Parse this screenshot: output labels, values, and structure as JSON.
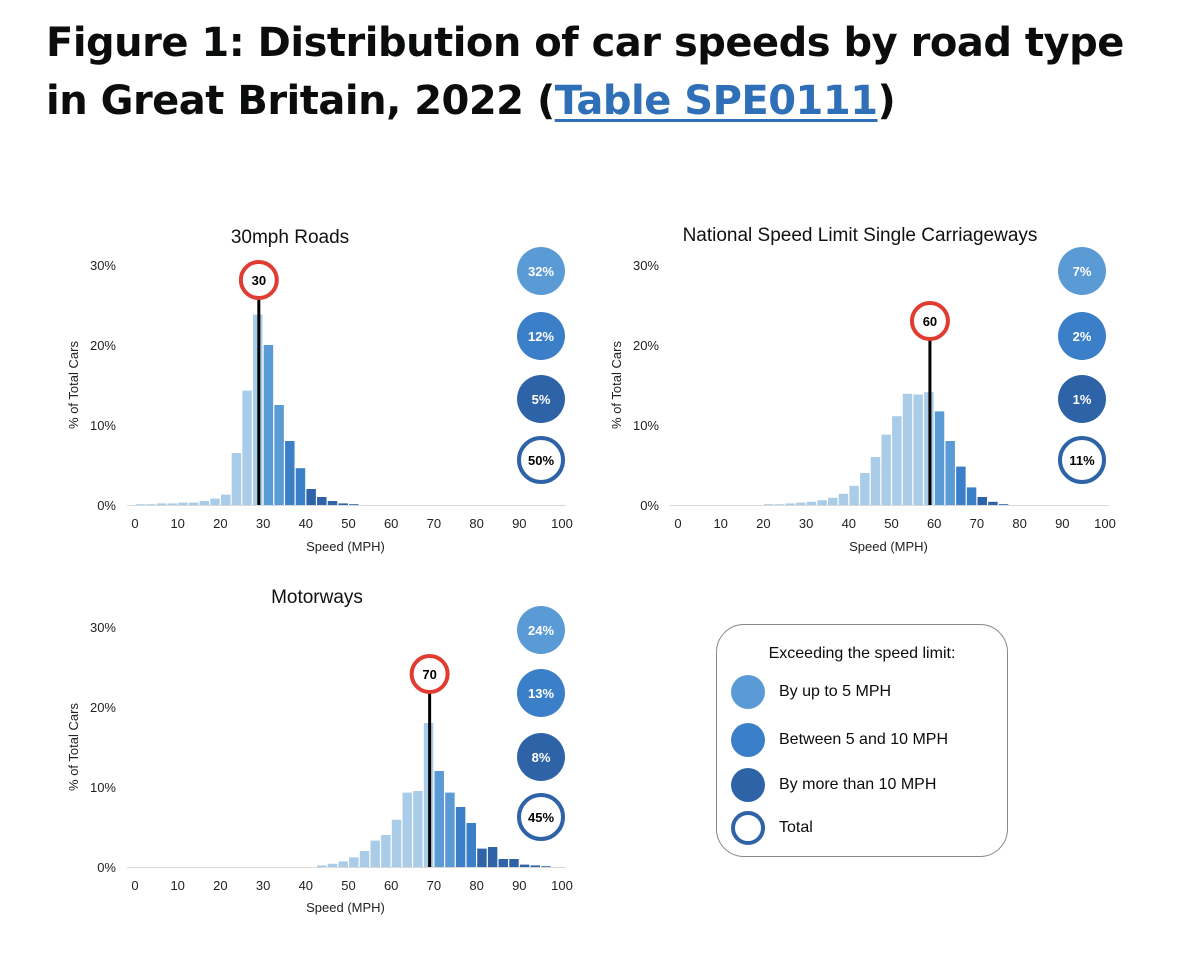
{
  "figure_title": {
    "prefix": "Figure 1: Distribution of car speeds by road type in Great Britain, 2022 (",
    "link_text": "Table SPE0111",
    "suffix": ")"
  },
  "colors": {
    "up_to_5": "#5b9bd5",
    "between_5_10": "#3a7fc8",
    "over_10": "#2e63a8",
    "total_ring": "#2e63a8",
    "under_limit_bar": "#a9cde8",
    "limit_ring": "#e03c31"
  },
  "legend": {
    "title": "Exceeding the speed limit:",
    "items": [
      {
        "label": "By up to 5 MPH",
        "color": "#5b9bd5",
        "style": "fill"
      },
      {
        "label": "Between 5 and 10 MPH",
        "color": "#3a7fc8",
        "style": "fill"
      },
      {
        "label": "By more than 10 MPH",
        "color": "#2e63a8",
        "style": "fill"
      },
      {
        "label": "Total",
        "color": "#2e63a8",
        "style": "ring"
      }
    ]
  },
  "chart_data": [
    {
      "type": "bar",
      "title": "30mph Roads",
      "xlabel": "Speed (MPH)",
      "ylabel": "% of Total Cars",
      "xlim": [
        0,
        100
      ],
      "ylim": [
        0,
        30
      ],
      "x_ticks": [
        "0",
        "10",
        "20",
        "30",
        "40",
        "50",
        "60",
        "70",
        "80",
        "90",
        "100"
      ],
      "y_ticks": [
        "0%",
        "10%",
        "20%",
        "30%"
      ],
      "speed_limit": "30",
      "speed_limit_value": 29,
      "bin_width": 2.5,
      "x": [
        0,
        2.5,
        5,
        7.5,
        10,
        12.5,
        15,
        17.5,
        20,
        22.5,
        25,
        27.5,
        30,
        32.5,
        35,
        37.5,
        40,
        42.5,
        45,
        47.5,
        50
      ],
      "values": [
        0.1,
        0.1,
        0.2,
        0.2,
        0.3,
        0.3,
        0.5,
        0.8,
        1.3,
        6.5,
        14.3,
        23.8,
        20.0,
        12.5,
        8.0,
        4.6,
        2.0,
        1.0,
        0.5,
        0.2,
        0.1
      ],
      "exceeding": {
        "up_to_5": "32%",
        "between_5_10": "12%",
        "over_10": "5%",
        "total": "50%"
      }
    },
    {
      "type": "bar",
      "title": "National Speed Limit Single Carriageways",
      "xlabel": "Speed (MPH)",
      "ylabel": "% of Total Cars",
      "xlim": [
        0,
        100
      ],
      "ylim": [
        0,
        30
      ],
      "x_ticks": [
        "0",
        "10",
        "20",
        "30",
        "40",
        "50",
        "60",
        "70",
        "80",
        "90",
        "100"
      ],
      "y_ticks": [
        "0%",
        "10%",
        "20%",
        "30%"
      ],
      "speed_limit": "60",
      "speed_limit_value": 59,
      "bin_width": 2.5,
      "x": [
        20,
        22.5,
        25,
        27.5,
        30,
        32.5,
        35,
        37.5,
        40,
        42.5,
        45,
        47.5,
        50,
        52.5,
        55,
        57.5,
        60,
        62.5,
        65,
        67.5,
        70,
        72.5,
        75
      ],
      "values": [
        0.1,
        0.1,
        0.2,
        0.3,
        0.4,
        0.6,
        0.9,
        1.4,
        2.4,
        4.0,
        6.0,
        8.8,
        11.1,
        13.9,
        13.8,
        14.1,
        11.7,
        8.0,
        4.8,
        2.2,
        1.0,
        0.4,
        0.1
      ],
      "exceeding": {
        "up_to_5": "7%",
        "between_5_10": "2%",
        "over_10": "1%",
        "total": "11%"
      }
    },
    {
      "type": "bar",
      "title": "Motorways",
      "xlabel": "Speed (MPH)",
      "ylabel": "% of Total Cars",
      "xlim": [
        0,
        100
      ],
      "ylim": [
        0,
        30
      ],
      "x_ticks": [
        "0",
        "10",
        "20",
        "30",
        "40",
        "50",
        "60",
        "70",
        "80",
        "90",
        "100"
      ],
      "y_ticks": [
        "0%",
        "10%",
        "20%",
        "30%"
      ],
      "speed_limit": "70",
      "speed_limit_value": 69,
      "bin_width": 2.5,
      "x": [
        42.5,
        45,
        47.5,
        50,
        52.5,
        55,
        57.5,
        60,
        62.5,
        65,
        67.5,
        70,
        72.5,
        75,
        77.5,
        80,
        82.5,
        85,
        87.5,
        90,
        92.5,
        95
      ],
      "values": [
        0.2,
        0.4,
        0.7,
        1.2,
        2.0,
        3.3,
        4.0,
        5.9,
        9.3,
        9.5,
        18.0,
        12.0,
        9.3,
        7.5,
        5.5,
        2.3,
        2.5,
        1.0,
        1.0,
        0.3,
        0.2,
        0.1
      ],
      "exceeding": {
        "up_to_5": "24%",
        "between_5_10": "13%",
        "over_10": "8%",
        "total": "45%"
      }
    }
  ]
}
